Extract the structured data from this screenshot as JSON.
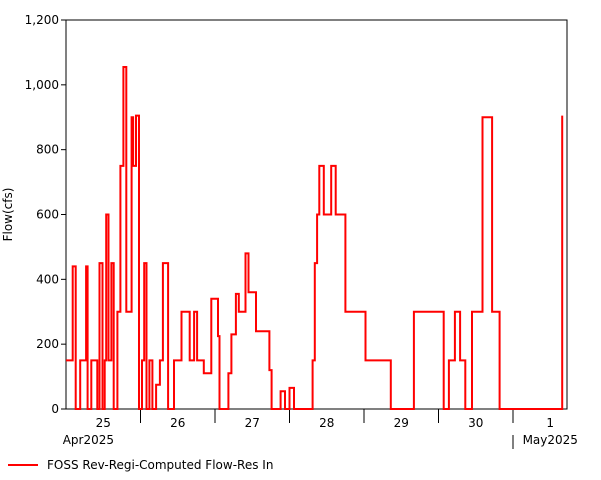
{
  "chart_data": {
    "type": "line",
    "ylabel": "Flow(cfs)",
    "ylim": [
      0,
      1200
    ],
    "yticks": [
      "0",
      "200",
      "400",
      "600",
      "800",
      "1,000",
      "1,200"
    ],
    "xlim_days": [
      0,
      6.66
    ],
    "x_day_labels": [
      {
        "day": 0.5,
        "label": "25"
      },
      {
        "day": 1.5,
        "label": "26"
      },
      {
        "day": 2.5,
        "label": "27"
      },
      {
        "day": 3.5,
        "label": "28"
      },
      {
        "day": 4.5,
        "label": "29"
      },
      {
        "day": 5.5,
        "label": "30"
      },
      {
        "day": 6.5,
        "label": "1"
      }
    ],
    "month_labels": [
      {
        "day": 0.3,
        "label": "Apr2025"
      },
      {
        "day": 6.5,
        "label": "May2025"
      }
    ],
    "grid": true,
    "color": "#ff0000",
    "series": [
      {
        "name": "FOSS Rev-Regi-Computed Flow-Res In",
        "x": [
          0,
          0.09,
          0.13,
          0.19,
          0.27,
          0.29,
          0.34,
          0.42,
          0.45,
          0.49,
          0.52,
          0.54,
          0.57,
          0.61,
          0.64,
          0.69,
          0.73,
          0.77,
          0.81,
          0.88,
          0.9,
          0.94,
          0.98,
          1.02,
          1.05,
          1.08,
          1.12,
          1.16,
          1.21,
          1.26,
          1.3,
          1.37,
          1.45,
          1.52,
          1.55,
          1.62,
          1.66,
          1.72,
          1.76,
          1.85,
          1.95,
          2.04,
          2.06,
          2.09,
          2.11,
          2.18,
          2.22,
          2.28,
          2.32,
          2.41,
          2.45,
          2.55,
          2.73,
          2.76,
          2.88,
          2.94,
          3.0,
          3.06,
          3.16,
          3.31,
          3.34,
          3.37,
          3.4,
          3.46,
          3.56,
          3.62,
          3.75,
          4.02,
          4.36,
          4.67,
          5.07,
          5.14,
          5.22,
          5.29,
          5.36,
          5.45,
          5.59,
          5.72,
          5.82,
          5.89,
          6.04,
          6.12,
          6.34,
          6.46,
          6.51,
          6.58,
          6.66
        ],
        "y": [
          150,
          440,
          0,
          150,
          440,
          0,
          150,
          0,
          450,
          0,
          150,
          600,
          150,
          450,
          0,
          300,
          750,
          1055,
          300,
          900,
          750,
          905,
          0,
          150,
          450,
          0,
          150,
          0,
          75,
          150,
          450,
          0,
          150,
          150,
          300,
          300,
          150,
          300,
          150,
          110,
          340,
          225,
          0,
          0,
          0,
          110,
          230,
          355,
          300,
          480,
          360,
          240,
          120,
          0,
          55,
          0,
          65,
          0,
          0,
          150,
          450,
          600,
          750,
          600,
          750,
          600,
          300,
          150,
          0,
          300,
          0,
          150,
          300,
          150,
          0,
          300,
          900,
          300,
          0,
          0,
          0,
          0,
          0,
          0,
          0,
          0,
          905
        ]
      }
    ],
    "legend": {
      "placement": "bottom-left",
      "label": "FOSS Rev-Regi-Computed Flow-Res In"
    }
  }
}
